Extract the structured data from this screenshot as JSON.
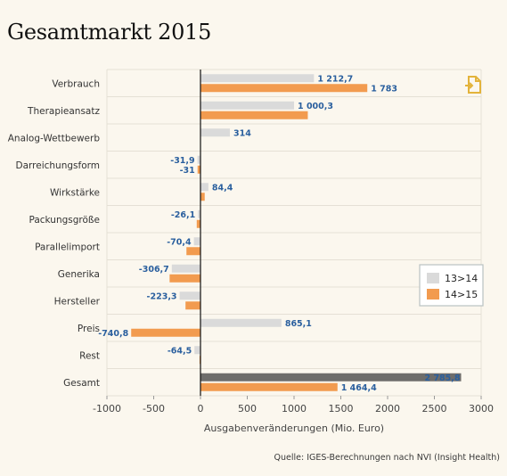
{
  "title": "Gesamtmarkt 2015",
  "source": "Quelle: IGES-Berechnungen nach NVI (Insight Health)",
  "export_icon": "document-export-icon",
  "colors": {
    "series1": "#dadada",
    "series2": "#f29b4f",
    "gesamt_series1": "#6e6d6b",
    "label": "#2a5f9e",
    "background": "#fbf7ee",
    "grid": "#e5e0d5",
    "icon": "#e3b33b"
  },
  "chart_data": {
    "type": "bar",
    "orientation": "horizontal",
    "categories": [
      "Verbrauch",
      "Therapieansatz",
      "Analog-Wettbewerb",
      "Darreichungsform",
      "Wirkstärke",
      "Packungsgröße",
      "Parallelimport",
      "Generika",
      "Hersteller",
      "Preis",
      "Rest",
      "Gesamt"
    ],
    "series": [
      {
        "name": "13>14",
        "values": [
          1212.7,
          1000.3,
          314,
          -31.9,
          84.4,
          -26.1,
          -70.4,
          -306.7,
          -223.3,
          865.1,
          -64.5,
          2785.8
        ],
        "labels": [
          "1 212,7",
          "1 000,3",
          "314",
          "-31,9",
          "84,4",
          "-26,1",
          "-70,4",
          "-306,7",
          "-223,3",
          "865,1",
          "-64,5",
          "2 785,8"
        ]
      },
      {
        "name": "14>15",
        "values": [
          1783,
          1147,
          0,
          -31,
          45,
          -40,
          -150,
          -330,
          -160,
          -740.8,
          -10,
          1464.4
        ],
        "labels": [
          "1 783",
          "",
          "",
          "-31",
          "",
          "",
          "",
          "",
          "",
          "-740,8",
          "",
          "1 464,4"
        ]
      }
    ],
    "xlabel": "Ausgabenveränderungen (Mio. Euro)",
    "xlim": [
      -1000,
      3000
    ],
    "xticks": [
      -1000,
      -500,
      0,
      500,
      1000,
      1500,
      2000,
      2500,
      3000
    ],
    "xtick_labels": [
      "-1000",
      "-500",
      "0",
      "500",
      "1000",
      "1500",
      "2000",
      "2500",
      "3000"
    ],
    "grid": "horizontal separators",
    "legend": "right"
  }
}
